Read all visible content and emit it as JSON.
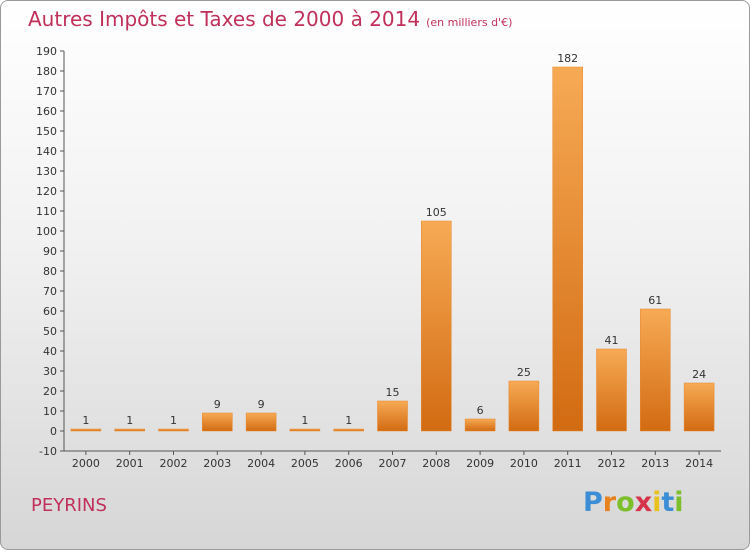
{
  "title": "Autres Impôts et Taxes de 2000 à 2014",
  "subtitle": "(en milliers d'€)",
  "commune": "PEYRINS",
  "logo": {
    "letters": [
      "P",
      "r",
      "o",
      "x",
      "i",
      "t",
      "i"
    ],
    "colors": [
      "#3b8ed6",
      "#e8821e",
      "#7cbf2b",
      "#d6344a",
      "#e8c21e",
      "#3b8ed6",
      "#7cbf2b"
    ]
  },
  "colors": {
    "bar": "#f0922f",
    "bar_light": "#f7aa55",
    "bar_dark": "#d26b12",
    "text_accent": "#c0305a"
  },
  "chart_data": {
    "type": "bar",
    "categories": [
      "2000",
      "2001",
      "2002",
      "2003",
      "2004",
      "2005",
      "2006",
      "2007",
      "2008",
      "2009",
      "2010",
      "2011",
      "2012",
      "2013",
      "2014"
    ],
    "values": [
      1,
      1,
      1,
      9,
      9,
      1,
      1,
      15,
      105,
      6,
      25,
      182,
      41,
      61,
      24
    ],
    "ylim": [
      -10,
      190
    ],
    "ystep": 10,
    "grid": false,
    "legend": "none"
  }
}
